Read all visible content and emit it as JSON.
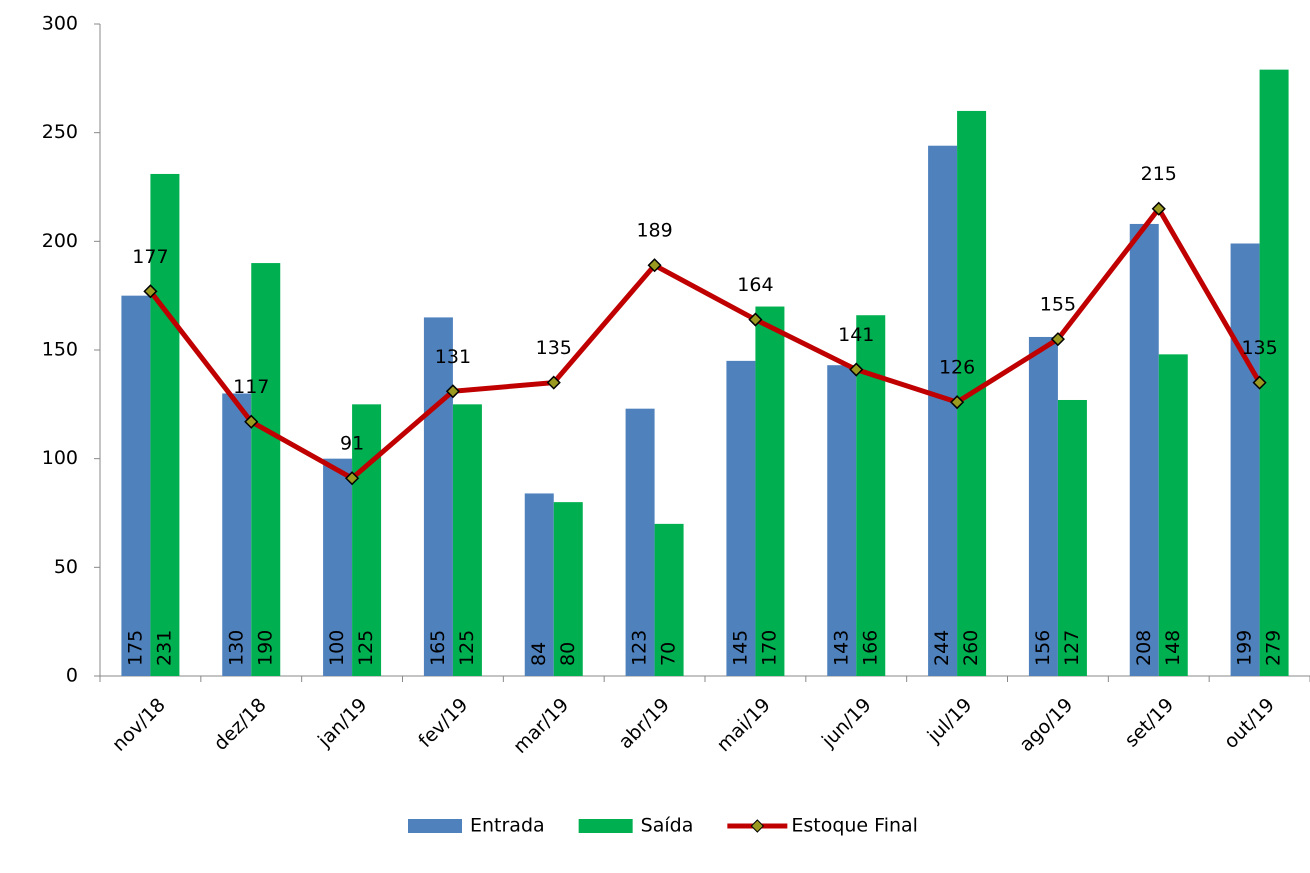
{
  "chart_data": {
    "type": "bar",
    "categories": [
      "nov/18",
      "dez/18",
      "jan/19",
      "fev/19",
      "mar/19",
      "abr/19",
      "mai/19",
      "jun/19",
      "jul/19",
      "ago/19",
      "set/19",
      "out/19"
    ],
    "series": [
      {
        "name": "Entrada",
        "type": "bar",
        "color": "#4f81bd",
        "values": [
          175,
          130,
          100,
          165,
          84,
          123,
          145,
          143,
          244,
          156,
          208,
          199
        ]
      },
      {
        "name": "Saída",
        "type": "bar",
        "color": "#00b050",
        "values": [
          231,
          190,
          125,
          125,
          80,
          70,
          170,
          166,
          260,
          127,
          148,
          279
        ]
      },
      {
        "name": "Estoque Final",
        "type": "line",
        "color": "#c00000",
        "values": [
          177,
          117,
          91,
          131,
          135,
          189,
          164,
          141,
          126,
          155,
          215,
          135
        ]
      }
    ],
    "ylim": [
      0,
      300
    ],
    "yticks": [
      0,
      50,
      100,
      150,
      200,
      250,
      300
    ],
    "grid": false,
    "legend": "bottom"
  }
}
